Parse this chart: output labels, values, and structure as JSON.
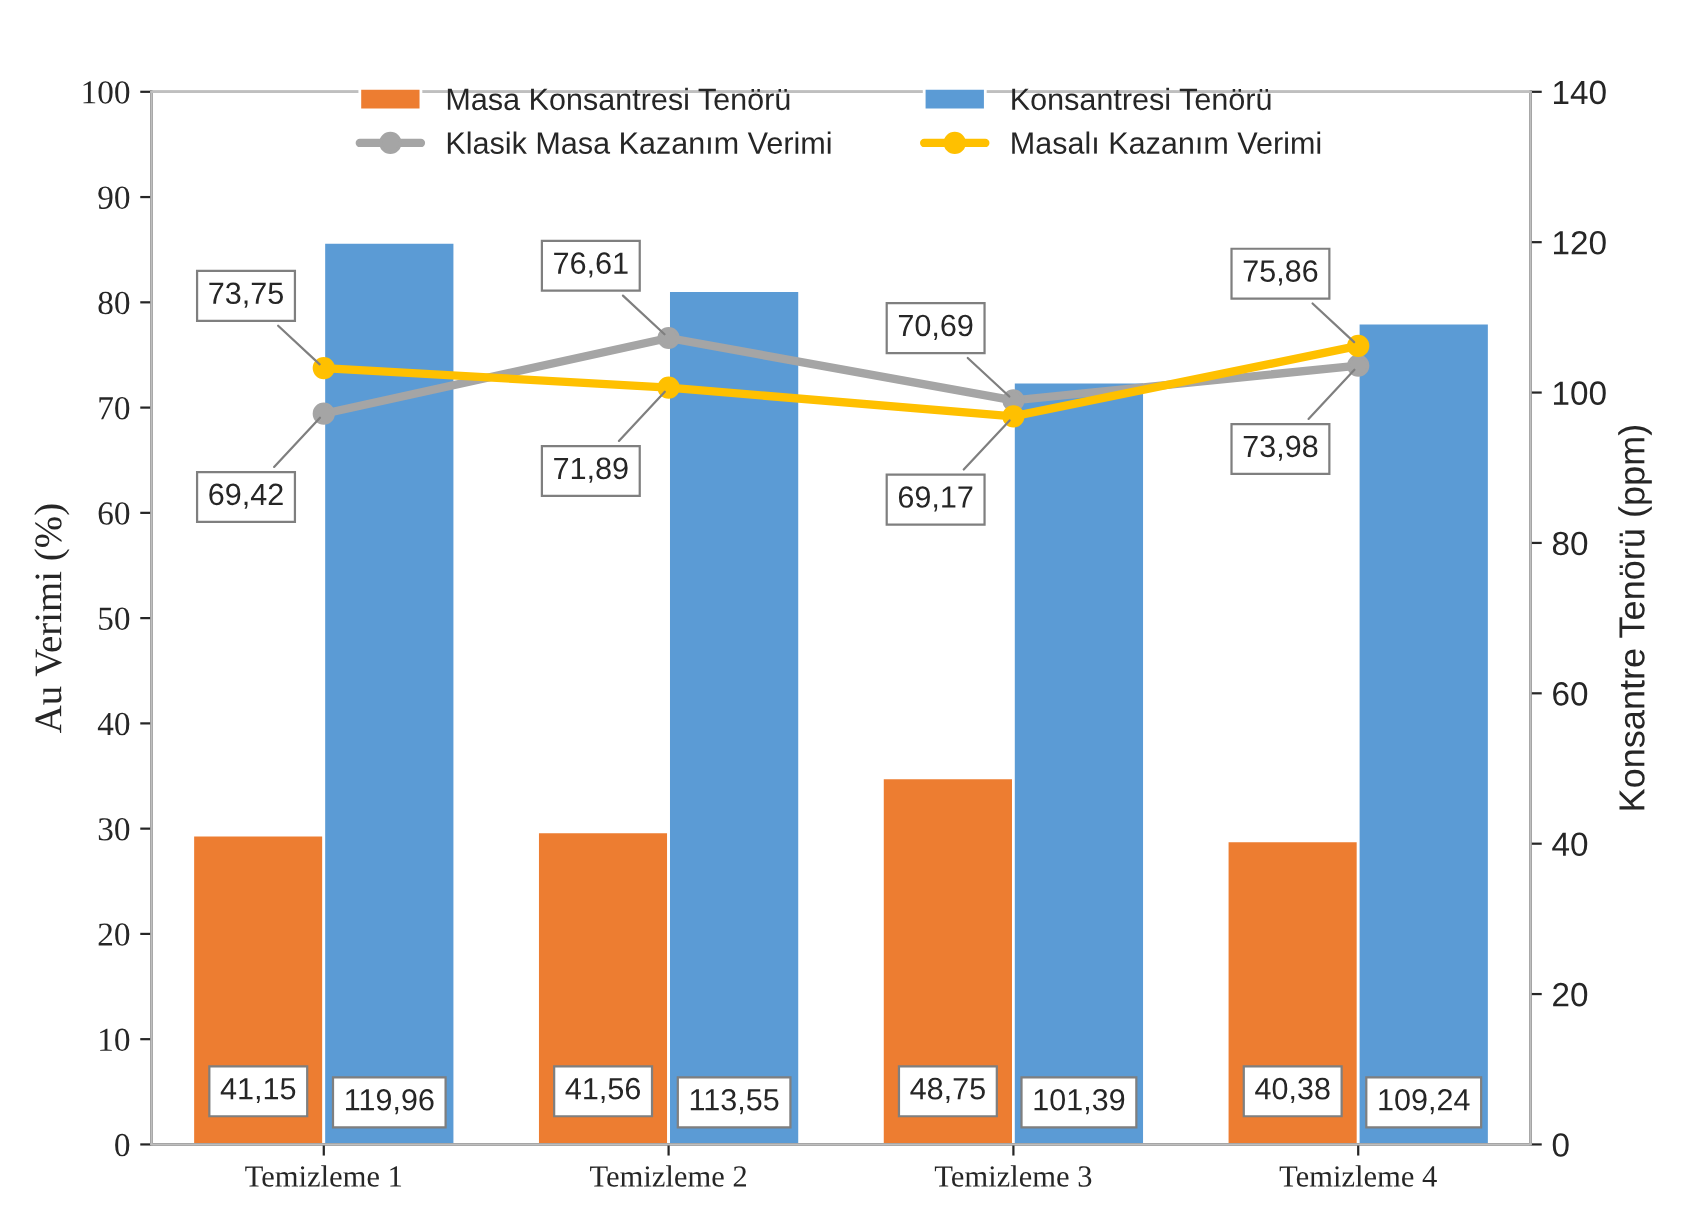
{
  "chart_data": {
    "type": "bar",
    "categories": [
      "Temizleme 1",
      "Temizleme 2",
      "Temizleme 3",
      "Temizleme 4"
    ],
    "ylabel": "Au Verimi (%)",
    "y2label": "Konsantre Tenörü (ppm)",
    "ylim": [
      0,
      100
    ],
    "yticks": [
      0,
      10,
      20,
      30,
      40,
      50,
      60,
      70,
      80,
      90,
      100
    ],
    "y2lim": [
      0,
      140
    ],
    "y2ticks": [
      0,
      20,
      40,
      60,
      80,
      100,
      120,
      140
    ],
    "series": [
      {
        "name": "Masa Konsantresi Tenörü",
        "axis": "y2",
        "color": "#ed7d31",
        "values": [
          41.15,
          41.56,
          48.75,
          40.38
        ],
        "value_labels": [
          "41,15",
          "41,56",
          "48,75",
          "40,38"
        ]
      },
      {
        "name": "Konsantresi Tenörü",
        "axis": "y2",
        "color": "#5b9bd5",
        "values": [
          119.96,
          113.55,
          101.39,
          109.24
        ],
        "value_labels": [
          "119,96",
          "113,55",
          "101,39",
          "109,24"
        ]
      },
      {
        "name": "Klasik Masa Kazanım Verimi",
        "type": "line",
        "axis": "y",
        "color": "#a5a5a5",
        "values": [
          69.42,
          76.61,
          70.69,
          73.98
        ],
        "value_labels": [
          "69,42",
          "76,61",
          "70,69",
          "73,98"
        ]
      },
      {
        "name": "Masalı Kazanım Verimi",
        "type": "line",
        "axis": "y",
        "color": "#ffc000",
        "values": [
          73.75,
          71.89,
          69.17,
          75.86
        ],
        "value_labels": [
          "73,75",
          "71,89",
          "69,17",
          "75,86"
        ]
      }
    ],
    "legend": "top",
    "marker": "circle",
    "line_style": "solid",
    "grid": false
  }
}
